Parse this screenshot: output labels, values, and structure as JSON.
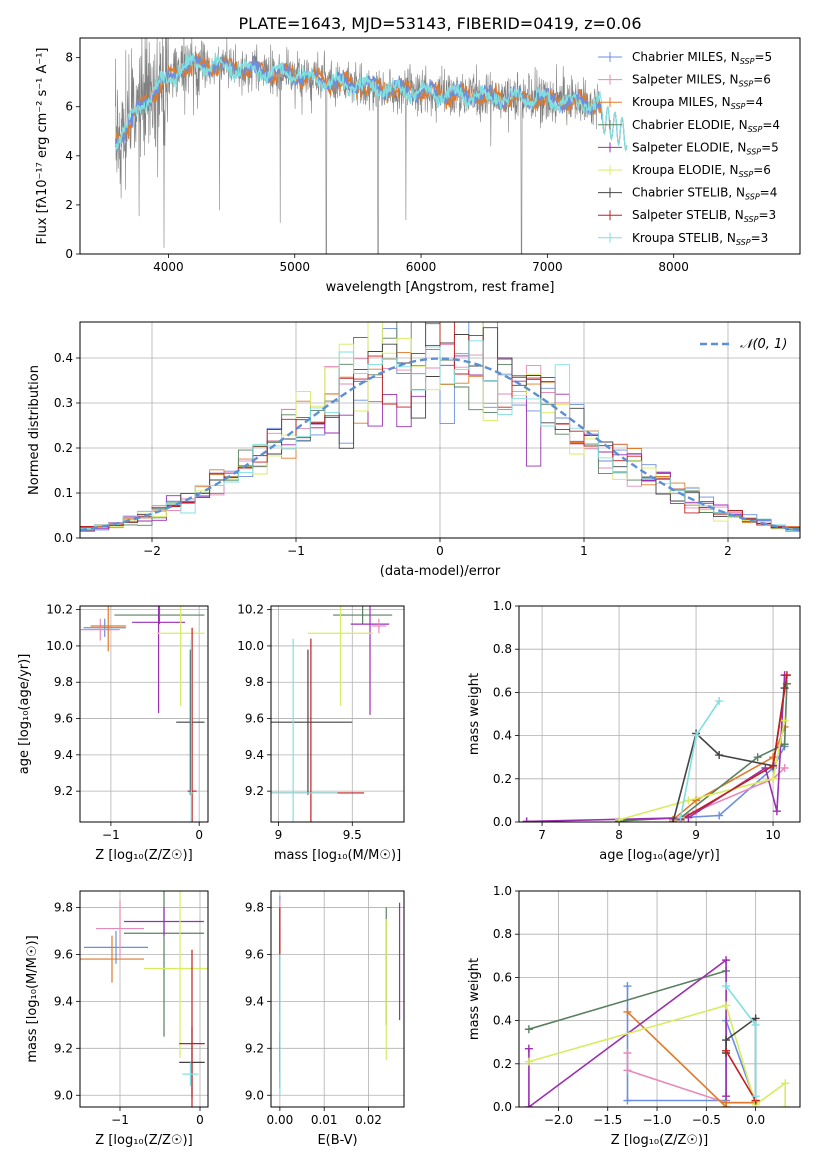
{
  "title": "PLATE=1643, MJD=53143, FIBERID=0419, z=0.06",
  "colors": {
    "chabrier_miles": "#6b8fe0",
    "salpeter_miles": "#e88ab8",
    "kroupa_miles": "#e07a2a",
    "chabrier_elodie": "#5a8060",
    "salpeter_elodie": "#9a30b0",
    "kroupa_elodie": "#d8ec60",
    "chabrier_stelib": "#444444",
    "salpeter_stelib": "#c02020",
    "kroupa_stelib": "#80e0e0",
    "data_spectrum": "#808080",
    "normal": "#5b8fd6",
    "grid": "#b0b0b0"
  },
  "chart_data": [
    {
      "type": "line",
      "name": "spectrum",
      "xlabel": "wavelength [Angstrom, rest frame]",
      "ylabel": "Flux [fλ10⁻¹⁷ erg cm⁻² s⁻¹ A⁻¹]",
      "xlim": [
        3300,
        9000
      ],
      "ylim": [
        0,
        8.8
      ],
      "xticks": [
        4000,
        5000,
        6000,
        7000,
        8000
      ],
      "yticks": [
        0,
        2,
        4,
        6,
        8
      ],
      "legend_position": "upper-right",
      "legend": [
        {
          "label": "Chabrier MILES, N",
          "sub": "SSP",
          "suffix": "=5",
          "color": "#6b8fe0"
        },
        {
          "label": "Salpeter MILES, N",
          "sub": "SSP",
          "suffix": "=6",
          "color": "#e88ab8"
        },
        {
          "label": "Kroupa MILES, N",
          "sub": "SSP",
          "suffix": "=4",
          "color": "#e07a2a"
        },
        {
          "label": "Chabrier ELODIE, N",
          "sub": "SSP",
          "suffix": "=4",
          "color": "#5a8060"
        },
        {
          "label": "Salpeter ELODIE, N",
          "sub": "SSP",
          "suffix": "=5",
          "color": "#9a30b0"
        },
        {
          "label": "Kroupa ELODIE, N",
          "sub": "SSP",
          "suffix": "=6",
          "color": "#d8ec60"
        },
        {
          "label": "Chabrier STELIB, N",
          "sub": "SSP",
          "suffix": "=4",
          "color": "#444444"
        },
        {
          "label": "Salpeter STELIB, N",
          "sub": "SSP",
          "suffix": "=3",
          "color": "#c02020"
        },
        {
          "label": "Kroupa STELIB, N",
          "sub": "SSP",
          "suffix": "=3",
          "color": "#80e0e0"
        }
      ],
      "spectrum_data_range": [
        3580,
        7430
      ],
      "spectrum_model_range": [
        3580,
        7630
      ],
      "continuum": [
        [
          3580,
          4.6
        ],
        [
          3650,
          5.0
        ],
        [
          3800,
          6.2
        ],
        [
          3950,
          6.9
        ],
        [
          4100,
          7.6
        ],
        [
          4300,
          7.7
        ],
        [
          4500,
          7.6
        ],
        [
          4800,
          7.4
        ],
        [
          5000,
          7.3
        ],
        [
          5300,
          7.0
        ],
        [
          5600,
          6.8
        ],
        [
          6000,
          6.6
        ],
        [
          6500,
          6.4
        ],
        [
          7000,
          6.3
        ],
        [
          7400,
          6.1
        ],
        [
          7630,
          5.2
        ]
      ]
    },
    {
      "type": "area",
      "name": "residual-distribution",
      "xlabel": "(data-model)/error",
      "ylabel": "Normed distribution",
      "xlim": [
        -2.5,
        2.5
      ],
      "ylim": [
        0,
        0.48
      ],
      "xticks": [
        -2,
        -1,
        0,
        1,
        2
      ],
      "yticks": [
        0.0,
        0.1,
        0.2,
        0.3,
        0.4
      ],
      "legend_label": "𝒩(0, 1)",
      "legend_position": "upper-right",
      "bin_width": 0.1
    },
    {
      "type": "scatter",
      "name": "age-vs-metallicity",
      "xlabel": "Z [log₁₀(Z/Z☉)]",
      "ylabel": "age  [log₁₀(age/yr)]",
      "xlim": [
        -1.35,
        0.1
      ],
      "ylim": [
        9.03,
        10.22
      ],
      "xticks": [
        -1,
        0
      ],
      "yticks": [
        9.2,
        9.4,
        9.6,
        9.8,
        10.0,
        10.2
      ],
      "points": [
        {
          "series": "chabrier_miles",
          "x": -1.07,
          "y": 10.1,
          "xe": 0.24,
          "ye": 0.05
        },
        {
          "series": "salpeter_miles",
          "x": -1.12,
          "y": 10.09,
          "xe": 0.22,
          "ye": 0.06
        },
        {
          "series": "kroupa_miles",
          "x": -1.03,
          "y": 10.11,
          "xe": 0.2,
          "ye": 0.14
        },
        {
          "series": "chabrier_elodie",
          "x": -0.45,
          "y": 10.17,
          "xe": 0.51,
          "ye": 0.05
        },
        {
          "series": "salpeter_elodie",
          "x": -0.46,
          "y": 10.13,
          "xe": 0.3,
          "ye": 0.5
        },
        {
          "series": "kroupa_elodie",
          "x": -0.21,
          "y": 10.07,
          "xe": 0.27,
          "ye": 0.4
        },
        {
          "series": "chabrier_stelib",
          "x": -0.1,
          "y": 9.58,
          "xe": 0.16,
          "ye": 0.4
        },
        {
          "series": "salpeter_stelib",
          "x": -0.08,
          "y": 9.2,
          "xe": 0.05,
          "ye": 0.9
        },
        {
          "series": "kroupa_stelib",
          "x": -0.09,
          "y": 9.19,
          "xe": 0.03,
          "ye": 0.85
        }
      ]
    },
    {
      "type": "scatter",
      "name": "age-vs-mass",
      "xlabel": "mass [log₁₀(M/M☉)]",
      "ylabel": "",
      "xlim": [
        8.95,
        9.85
      ],
      "ylim": [
        9.03,
        10.22
      ],
      "xticks": [
        9.0,
        9.5
      ],
      "yticks": [
        9.2,
        9.4,
        9.6,
        9.8,
        10.0,
        10.2
      ],
      "points": [
        {
          "series": "chabrier_elodie",
          "x": 9.57,
          "y": 10.17,
          "xe": 0.2,
          "ye": 0.05
        },
        {
          "series": "salpeter_elodie",
          "x": 9.62,
          "y": 10.12,
          "xe": 0.13,
          "ye": 0.5
        },
        {
          "series": "salpeter_miles",
          "x": 9.68,
          "y": 10.11,
          "xe": 0.05,
          "ye": 0.04
        },
        {
          "series": "kroupa_elodie",
          "x": 9.42,
          "y": 10.07,
          "xe": 0.22,
          "ye": 0.4
        },
        {
          "series": "chabrier_stelib",
          "x": 9.2,
          "y": 9.58,
          "xe": 0.3,
          "ye": 0.4
        },
        {
          "series": "salpeter_stelib",
          "x": 9.22,
          "y": 9.19,
          "xe": 0.36,
          "ye": 0.85
        },
        {
          "series": "kroupa_stelib",
          "x": 9.1,
          "y": 9.19,
          "xe": 0.3,
          "ye": 0.85
        }
      ]
    },
    {
      "type": "line",
      "name": "mass-weight-vs-age",
      "xlabel": "age  [log₁₀(age/yr)]",
      "ylabel": "mass weight",
      "xlim": [
        6.7,
        10.35
      ],
      "ylim": [
        0,
        1.0
      ],
      "xticks": [
        7,
        8,
        9,
        10
      ],
      "yticks": [
        0.0,
        0.2,
        0.4,
        0.6,
        0.8,
        1.0
      ],
      "series": [
        {
          "key": "chabrier_miles",
          "points": [
            [
              8.8,
              0.02
            ],
            [
              9.3,
              0.03
            ],
            [
              10.0,
              0.25
            ],
            [
              10.15,
              0.35
            ]
          ]
        },
        {
          "key": "salpeter_miles",
          "points": [
            [
              8.7,
              0.01
            ],
            [
              9.0,
              0.05
            ],
            [
              10.0,
              0.2
            ],
            [
              10.15,
              0.25
            ]
          ]
        },
        {
          "key": "kroupa_miles",
          "points": [
            [
              8.7,
              0.01
            ],
            [
              9.0,
              0.1
            ],
            [
              10.0,
              0.3
            ],
            [
              10.15,
              0.44
            ]
          ]
        },
        {
          "key": "chabrier_elodie",
          "points": [
            [
              8.0,
              0.005
            ],
            [
              8.8,
              0.02
            ],
            [
              9.8,
              0.3
            ],
            [
              10.15,
              0.36
            ],
            [
              10.18,
              0.64
            ]
          ]
        },
        {
          "key": "salpeter_elodie",
          "points": [
            [
              6.8,
              0.003
            ],
            [
              8.9,
              0.02
            ],
            [
              9.9,
              0.25
            ],
            [
              10.05,
              0.05
            ],
            [
              10.15,
              0.68
            ]
          ]
        },
        {
          "key": "kroupa_elodie",
          "points": [
            [
              8.0,
              0.01
            ],
            [
              8.9,
              0.1
            ],
            [
              10.0,
              0.2
            ],
            [
              10.15,
              0.47
            ]
          ]
        },
        {
          "key": "chabrier_stelib",
          "points": [
            [
              8.7,
              0.0
            ],
            [
              9.0,
              0.41
            ],
            [
              9.3,
              0.31
            ],
            [
              10.0,
              0.26
            ],
            [
              10.15,
              0.62
            ]
          ]
        },
        {
          "key": "salpeter_stelib",
          "points": [
            [
              8.8,
              0.01
            ],
            [
              10.0,
              0.26
            ],
            [
              10.18,
              0.68
            ]
          ]
        },
        {
          "key": "kroupa_stelib",
          "points": [
            [
              8.8,
              0.02
            ],
            [
              9.0,
              0.4
            ],
            [
              9.3,
              0.56
            ]
          ]
        }
      ]
    },
    {
      "type": "scatter",
      "name": "mass-vs-metallicity",
      "xlabel": "Z [log₁₀(Z/Z☉)]",
      "ylabel": "mass [log₁₀(M/M☉)]",
      "xlim": [
        -1.5,
        0.1
      ],
      "ylim": [
        8.95,
        9.87
      ],
      "xticks": [
        -1,
        0
      ],
      "yticks": [
        9.0,
        9.2,
        9.4,
        9.6,
        9.8
      ],
      "points": [
        {
          "series": "chabrier_miles",
          "x": -1.05,
          "y": 9.63,
          "xe": 0.4,
          "ye": 0.07
        },
        {
          "series": "salpeter_miles",
          "x": -1.0,
          "y": 9.71,
          "xe": 0.3,
          "ye": 0.12
        },
        {
          "series": "kroupa_miles",
          "x": -1.1,
          "y": 9.58,
          "xe": 0.4,
          "ye": 0.1
        },
        {
          "series": "chabrier_elodie",
          "x": -0.45,
          "y": 9.69,
          "xe": 0.5,
          "ye": 0.44
        },
        {
          "series": "salpeter_elodie",
          "x": -0.45,
          "y": 9.74,
          "xe": 0.5,
          "ye": 0.06
        },
        {
          "series": "kroupa_elodie",
          "x": -0.25,
          "y": 9.54,
          "xe": 0.45,
          "ye": 0.38
        },
        {
          "series": "chabrier_stelib",
          "x": -0.1,
          "y": 9.14,
          "xe": 0.16,
          "ye": 0.15
        },
        {
          "series": "salpeter_stelib",
          "x": -0.1,
          "y": 9.22,
          "xe": 0.16,
          "ye": 0.4
        },
        {
          "series": "kroupa_stelib",
          "x": -0.12,
          "y": 9.09,
          "xe": 0.1,
          "ye": 0.05
        }
      ]
    },
    {
      "type": "scatter",
      "name": "mass-vs-reddening",
      "xlabel": "E(B-V)",
      "ylabel": "",
      "xlim": [
        -0.002,
        0.028
      ],
      "ylim": [
        8.95,
        9.87
      ],
      "xticks": [
        0.0,
        0.01,
        0.02
      ],
      "xtick_labels": [
        "0.00",
        "0.01",
        "0.02"
      ],
      "yticks": [
        9.0,
        9.2,
        9.4,
        9.6,
        9.8
      ],
      "points": [
        {
          "series": "chabrier_miles",
          "x": 0.0,
          "y": 9.6,
          "xe": 0.0,
          "ye": 0.25
        },
        {
          "series": "salpeter_miles",
          "x": 0.0,
          "y": 9.7,
          "xe": 0.0,
          "ye": 0.13
        },
        {
          "series": "kroupa_miles",
          "x": 0.0,
          "y": 9.58,
          "xe": 0.0,
          "ye": 0.12
        },
        {
          "series": "chabrier_elodie",
          "x": 0.024,
          "y": 9.55,
          "xe": 0.0,
          "ye": 0.25
        },
        {
          "series": "salpeter_elodie",
          "x": 0.027,
          "y": 9.57,
          "xe": 0.0,
          "ye": 0.25
        },
        {
          "series": "kroupa_elodie",
          "x": 0.024,
          "y": 9.45,
          "xe": 0.0,
          "ye": 0.3
        },
        {
          "series": "chabrier_stelib",
          "x": 0.0,
          "y": 9.15,
          "xe": 0.0,
          "ye": 0.12
        },
        {
          "series": "salpeter_stelib",
          "x": 0.0,
          "y": 9.45,
          "xe": 0.0,
          "ye": 0.35
        },
        {
          "series": "kroupa_stelib",
          "x": 0.0,
          "y": 9.3,
          "xe": 0.0,
          "ye": 0.3
        }
      ]
    },
    {
      "type": "line",
      "name": "mass-weight-vs-metallicity",
      "xlabel": "Z [log₁₀(Z/Z☉)]",
      "ylabel": "mass weight",
      "xlim": [
        -2.4,
        0.45
      ],
      "ylim": [
        0,
        1.0
      ],
      "xticks": [
        -2.0,
        -1.5,
        -1.0,
        -0.5,
        0.0
      ],
      "xtick_labels": [
        "−2.0",
        "−1.5",
        "−1.0",
        "−0.5",
        "0.0"
      ],
      "yticks": [
        0.0,
        0.2,
        0.4,
        0.6,
        0.8,
        1.0
      ],
      "series": [
        {
          "key": "chabrier_miles",
          "points": [
            [
              -1.3,
              0.56
            ],
            [
              -1.3,
              0.03
            ],
            [
              -0.3,
              0.03
            ],
            [
              -0.3,
              0.4
            ],
            [
              0.0,
              0.02
            ]
          ]
        },
        {
          "key": "salpeter_miles",
          "points": [
            [
              -1.3,
              0.25
            ],
            [
              -1.3,
              0.17
            ],
            [
              -0.3,
              0.02
            ],
            [
              0.0,
              0.02
            ]
          ]
        },
        {
          "key": "kroupa_miles",
          "points": [
            [
              -1.3,
              0.44
            ],
            [
              -0.3,
              0.0
            ],
            [
              -0.3,
              0.02
            ],
            [
              0.0,
              0.02
            ]
          ]
        },
        {
          "key": "chabrier_elodie",
          "points": [
            [
              -2.3,
              0.36
            ],
            [
              -0.3,
              0.63
            ]
          ]
        },
        {
          "key": "salpeter_elodie",
          "points": [
            [
              -2.3,
              0.27
            ],
            [
              -2.3,
              0.0
            ],
            [
              -0.3,
              0.68
            ],
            [
              -0.3,
              0.05
            ]
          ]
        },
        {
          "key": "kroupa_elodie",
          "points": [
            [
              -2.3,
              0.21
            ],
            [
              -0.3,
              0.47
            ],
            [
              0.0,
              0.01
            ],
            [
              0.3,
              0.11
            ],
            [
              0.3,
              0.0
            ]
          ]
        },
        {
          "key": "chabrier_stelib",
          "points": [
            [
              -0.3,
              0.25
            ],
            [
              -0.3,
              0.31
            ],
            [
              0.0,
              0.41
            ],
            [
              0.0,
              0.03
            ]
          ]
        },
        {
          "key": "salpeter_stelib",
          "points": [
            [
              -0.3,
              0.26
            ],
            [
              0.0,
              0.03
            ]
          ]
        },
        {
          "key": "kroupa_stelib",
          "points": [
            [
              -0.3,
              0.56
            ],
            [
              0.0,
              0.38
            ],
            [
              0.0,
              0.05
            ]
          ]
        }
      ]
    }
  ]
}
